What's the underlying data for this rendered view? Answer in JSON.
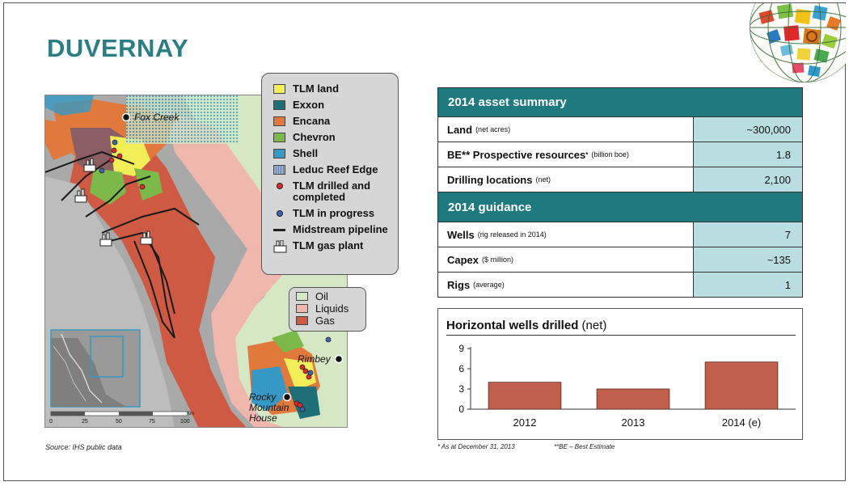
{
  "slide": {
    "title": "DUVERNAY",
    "source": "Source: IHS public data",
    "footnote_1": "* As at December 31, 2013",
    "footnote_2": "**BE – Best Estimate"
  },
  "map": {
    "places": [
      "Fox Creek",
      "Rimbey",
      "Rocky Mountain House"
    ],
    "scale_ticks": [
      "0",
      "25",
      "50",
      "75",
      "100"
    ],
    "scale_unit": "Km",
    "legend": [
      {
        "label": "TLM land",
        "kind": "swatch",
        "color": "#f2ee57"
      },
      {
        "label": "Exxon",
        "kind": "swatch",
        "color": "#1e6f78"
      },
      {
        "label": "Encana",
        "kind": "swatch",
        "color": "#e0793b"
      },
      {
        "label": "Chevron",
        "kind": "swatch",
        "color": "#7cb84a"
      },
      {
        "label": "Shell",
        "kind": "swatch",
        "color": "#3598c5"
      },
      {
        "label": "Leduc Reef Edge",
        "kind": "hatch",
        "color": "#9ab0d0"
      },
      {
        "label": "TLM drilled and completed",
        "kind": "dot",
        "color": "#e2282a"
      },
      {
        "label": "TLM in progress",
        "kind": "dot",
        "color": "#3e64b0"
      },
      {
        "label": "Midstream pipeline",
        "kind": "line",
        "color": "#222222"
      },
      {
        "label": "TLM gas plant",
        "kind": "plant-icon",
        "color": "#222222"
      }
    ],
    "fluid_legend": [
      {
        "label": "Oil",
        "color": "#d6e7c6"
      },
      {
        "label": "Liquids",
        "color": "#f0b7ae"
      },
      {
        "label": "Gas",
        "color": "#cf5a43"
      }
    ]
  },
  "asset_summary": {
    "heading": "2014 asset summary",
    "rows": [
      {
        "label": "Land",
        "sub": "(net acres)",
        "value": "~300,000"
      },
      {
        "label": "BE** Prospective resources",
        "sup": "*",
        "sub": "(billion boe)",
        "value": "1.8"
      },
      {
        "label": "Drilling locations",
        "sub": "(net)",
        "value": "2,100"
      }
    ]
  },
  "guidance": {
    "heading": "2014 guidance",
    "rows": [
      {
        "label": "Wells",
        "sub": "(rig released in 2014)",
        "value": "7"
      },
      {
        "label": "Capex",
        "sub": "($ million)",
        "value": "~135"
      },
      {
        "label": "Rigs",
        "sub": "(average)",
        "value": "1"
      }
    ]
  },
  "chart_data": {
    "type": "bar",
    "title": "Horizontal wells drilled",
    "title_suffix": "(net)",
    "categories": [
      "2012",
      "2013",
      "2014 (e)"
    ],
    "values": [
      4,
      3,
      7
    ],
    "ylim": [
      0,
      9
    ],
    "yticks": [
      0,
      3,
      6,
      9
    ],
    "bar_color": "#c0604c",
    "grid": false,
    "legend": "none"
  },
  "colors": {
    "accent": "#1f7a80",
    "table_value_bg": "#b9dde0"
  }
}
